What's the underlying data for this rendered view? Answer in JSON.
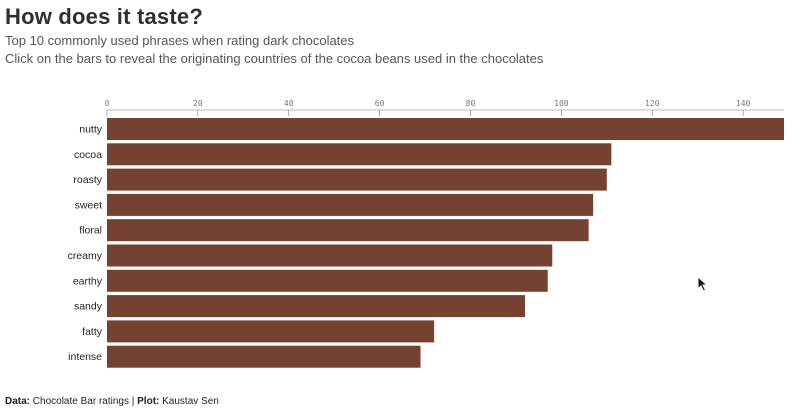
{
  "title": "How does it taste?",
  "subtitle_1": "Top 10 commonly used phrases when rating dark chocolates",
  "subtitle_2": "Click on the bars to reveal the originating countries of the cocoa beans used in the chocolates",
  "footer": {
    "data_label": "Data:",
    "data_value": "Chocolate Bar ratings",
    "separator": "|",
    "plot_label": "Plot:",
    "plot_value": "Kaustav Sen"
  },
  "colors": {
    "bar": "#754232",
    "axis": "#777777"
  },
  "icons": {
    "cursor": "mouse-pointer-icon"
  },
  "chart_data": {
    "type": "bar",
    "orientation": "horizontal",
    "categories": [
      "nutty",
      "cocoa",
      "roasty",
      "sweet",
      "floral",
      "creamy",
      "earthy",
      "sandy",
      "fatty",
      "intense"
    ],
    "values": [
      149,
      111,
      110,
      107,
      106,
      98,
      97,
      92,
      72,
      69
    ],
    "xlim": [
      0,
      149
    ],
    "xticks": [
      0,
      20,
      40,
      60,
      80,
      100,
      120,
      140
    ],
    "axis_position": "top",
    "grid": false
  }
}
